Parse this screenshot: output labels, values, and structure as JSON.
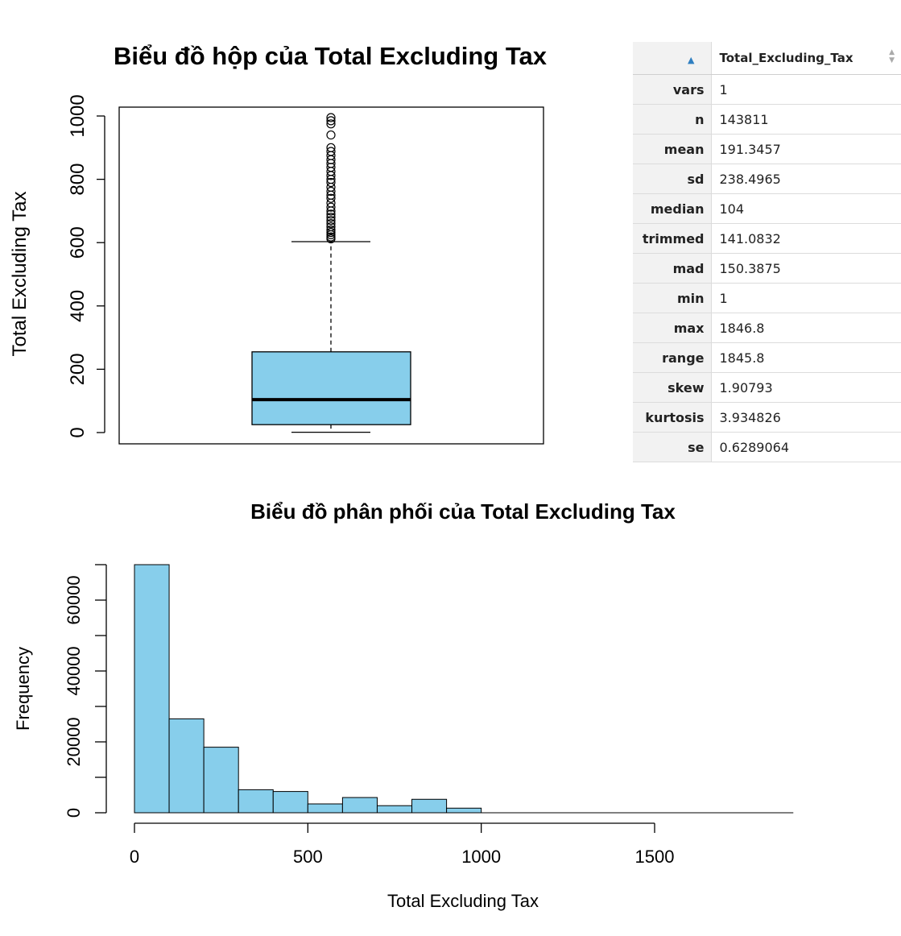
{
  "boxplot": {
    "title": "Biểu đồ hộp của Total Excluding Tax",
    "ylabel": "Total Excluding Tax",
    "yticks": [
      "0",
      "200",
      "400",
      "600",
      "800",
      "1000"
    ]
  },
  "histogram": {
    "title": "Biểu đồ phân phối của Total Excluding Tax",
    "xlabel": "Total Excluding Tax",
    "ylabel": "Frequency",
    "xticks": [
      "0",
      "500",
      "1000",
      "1500"
    ],
    "yticks": [
      "0",
      "20000",
      "40000",
      "60000"
    ]
  },
  "stats_table": {
    "column_header": "Total_Excluding_Tax",
    "rows": [
      {
        "name": "vars",
        "value": "1"
      },
      {
        "name": "n",
        "value": "143811"
      },
      {
        "name": "mean",
        "value": "191.3457"
      },
      {
        "name": "sd",
        "value": "238.4965"
      },
      {
        "name": "median",
        "value": "104"
      },
      {
        "name": "trimmed",
        "value": "141.0832"
      },
      {
        "name": "mad",
        "value": "150.3875"
      },
      {
        "name": "min",
        "value": "1"
      },
      {
        "name": "max",
        "value": "1846.8"
      },
      {
        "name": "range",
        "value": "1845.8"
      },
      {
        "name": "skew",
        "value": "1.90793"
      },
      {
        "name": "kurtosis",
        "value": "3.934826"
      },
      {
        "name": "se",
        "value": "0.6289064"
      }
    ]
  },
  "colors": {
    "fill": "#87ceeb",
    "stroke": "#000000",
    "sort_icon": "#2f7fc1"
  },
  "chart_data": [
    {
      "type": "boxplot",
      "title": "Biểu đồ hộp của Total Excluding Tax",
      "ylabel": "Total Excluding Tax",
      "ylim": [
        0,
        1050
      ],
      "whisker_low": 1,
      "q1": 25,
      "median": 104,
      "q3": 255,
      "whisker_high": 603,
      "outliers": [
        612,
        618,
        625,
        632,
        640,
        650,
        660,
        670,
        680,
        690,
        700,
        712,
        725,
        740,
        750,
        762,
        775,
        790,
        800,
        812,
        825,
        838,
        850,
        862,
        875,
        888,
        900,
        940,
        975,
        985,
        995,
        1030
      ]
    },
    {
      "type": "bar",
      "subtype": "histogram",
      "title": "Biểu đồ phân phối của Total Excluding Tax",
      "xlabel": "Total Excluding Tax",
      "ylabel": "Frequency",
      "bin_width": 100,
      "bin_starts": [
        0,
        100,
        200,
        300,
        400,
        500,
        600,
        700,
        800,
        900
      ],
      "values": [
        70000,
        26500,
        18500,
        6500,
        6000,
        2500,
        4300,
        2000,
        3800,
        1300
      ],
      "xlim": [
        0,
        1900
      ],
      "ylim": [
        0,
        70000
      ]
    }
  ]
}
